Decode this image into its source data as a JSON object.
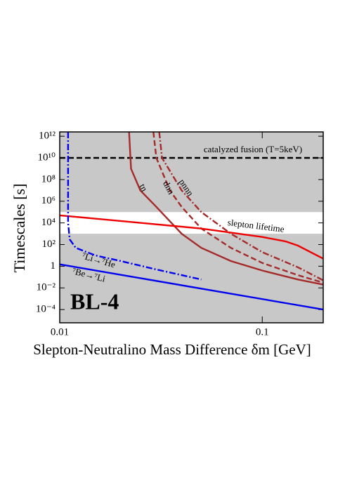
{
  "chart_data": {
    "type": "line",
    "log_x": true,
    "log_y": true,
    "xlabel": "Slepton-Neutralino Mass Difference  δm [GeV]",
    "ylabel": "Timescales [s]",
    "annotation": "BL-4",
    "xlim": [
      0.01,
      0.2
    ],
    "ylim": [
      6e-06,
      2500000000000.0
    ],
    "xticks": [
      0.01,
      0.1
    ],
    "yticks": [
      {
        "value": 1000000000000.0,
        "label": "10¹²"
      },
      {
        "value": 10000000000.0,
        "label": "10¹⁰"
      },
      {
        "value": 100000000.0,
        "label": "10⁸"
      },
      {
        "value": 1000000.0,
        "label": "10⁶"
      },
      {
        "value": 10000.0,
        "label": "10⁴"
      },
      {
        "value": 100,
        "label": "10²"
      },
      1,
      {
        "value": 0.01,
        "label": "10⁻²"
      },
      {
        "value": 0.0001,
        "label": "10⁻⁴"
      }
    ],
    "shade_color": "#c8c8c8",
    "unshaded_band": [
      1000,
      100000
    ],
    "series": [
      {
        "name": "catalyzed fusion (T=5keV)",
        "color": "#000000",
        "dash": "dashed",
        "x": [
          0.01,
          0.2
        ],
        "values": [
          10000000000.0,
          10000000000.0
        ]
      },
      {
        "name": "tn",
        "color": "#a52a2a",
        "dash": "solid",
        "x": [
          0.022,
          0.0225,
          0.025,
          0.03,
          0.04,
          0.05,
          0.07,
          0.1,
          0.15,
          0.2
        ],
        "values": [
          2500000000000.0,
          1000000000.0,
          10000000.0,
          300000.0,
          1000,
          50,
          3,
          0.4,
          0.06,
          0.02
        ]
      },
      {
        "name": "dnn",
        "color": "#a52a2a",
        "dash": "dashed",
        "x": [
          0.029,
          0.03,
          0.035,
          0.04,
          0.05,
          0.07,
          0.1,
          0.15,
          0.2
        ],
        "values": [
          2500000000000.0,
          10000000000.0,
          10000000.0,
          300000.0,
          3000,
          50,
          2,
          0.15,
          0.03
        ]
      },
      {
        "name": "pnnn",
        "color": "#a52a2a",
        "dash": "dashdot",
        "x": [
          0.031,
          0.032,
          0.04,
          0.05,
          0.07,
          0.1,
          0.15,
          0.2
        ],
        "values": [
          2500000000000.0,
          10000000000.0,
          10000000.0,
          100000.0,
          1000,
          20,
          0.8,
          0.05
        ]
      },
      {
        "name": "slepton lifetime",
        "color": "#ee0000",
        "dash": "solid",
        "x": [
          0.01,
          0.02,
          0.05,
          0.1,
          0.13,
          0.15,
          0.2
        ],
        "values": [
          50000,
          15000,
          3000,
          500,
          200,
          80,
          5
        ]
      },
      {
        "name": "⁷Li→⁷He",
        "color": "#0000ee",
        "dash": "dashdot",
        "x": [
          0.011,
          0.011,
          0.0112,
          0.012,
          0.015,
          0.02,
          0.03,
          0.05
        ],
        "values": [
          2500000000000.0,
          10000,
          300,
          50,
          10,
          3,
          0.5,
          0.06
        ]
      },
      {
        "name": "⁷Be→⁷Li",
        "color": "#0000ee",
        "dash": "solid",
        "x": [
          0.01,
          0.2
        ],
        "values": [
          1.5,
          0.0001
        ]
      }
    ]
  }
}
